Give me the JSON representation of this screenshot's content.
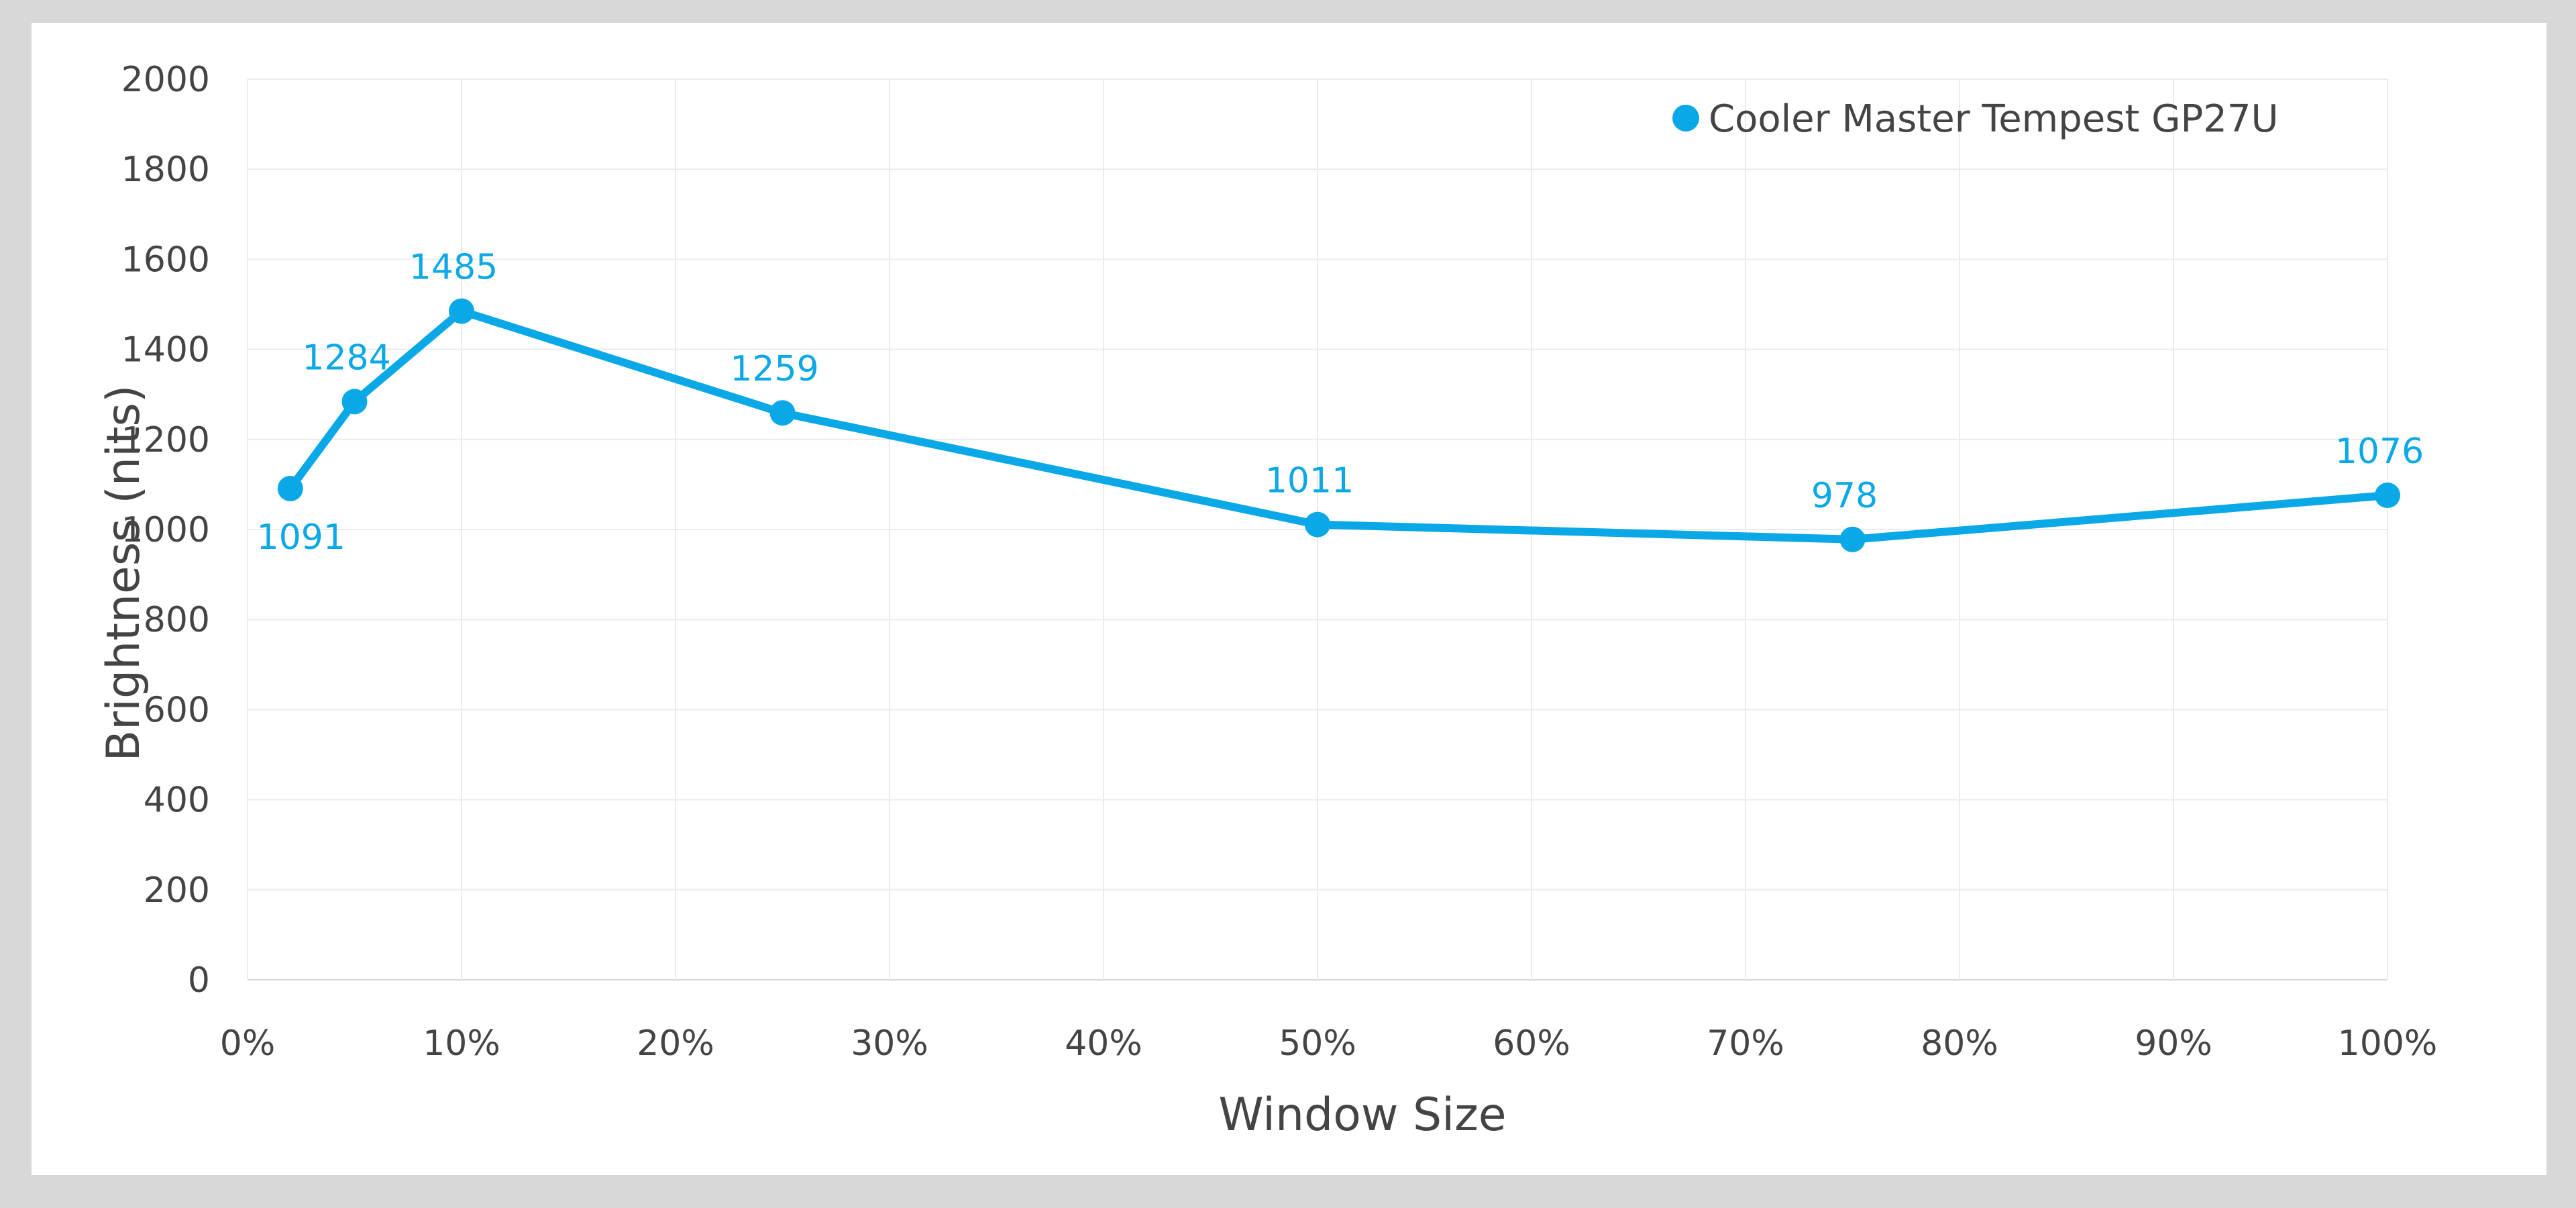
{
  "chart_data": {
    "type": "line",
    "xlabel": "Window Size",
    "ylabel": "Brightness (nits)",
    "xlim": [
      0,
      100
    ],
    "ylim": [
      0,
      2000
    ],
    "x_ticks": [
      "0%",
      "10%",
      "20%",
      "30%",
      "40%",
      "50%",
      "60%",
      "70%",
      "80%",
      "90%",
      "100%"
    ],
    "y_ticks": [
      "0",
      "200",
      "400",
      "600",
      "800",
      "1000",
      "1200",
      "1400",
      "1600",
      "1800",
      "2000"
    ],
    "grid": true,
    "legend_position": "top-right",
    "series": [
      {
        "name": "Cooler Master Tempest GP27U",
        "color": "#0aa8e6",
        "x": [
          2,
          5,
          10,
          25,
          50,
          75,
          100
        ],
        "y": [
          1091,
          1284,
          1485,
          1259,
          1011,
          978,
          1076
        ],
        "labels": [
          "1091",
          "1284",
          "1485",
          "1259",
          "1011",
          "978",
          "1076"
        ]
      }
    ]
  }
}
